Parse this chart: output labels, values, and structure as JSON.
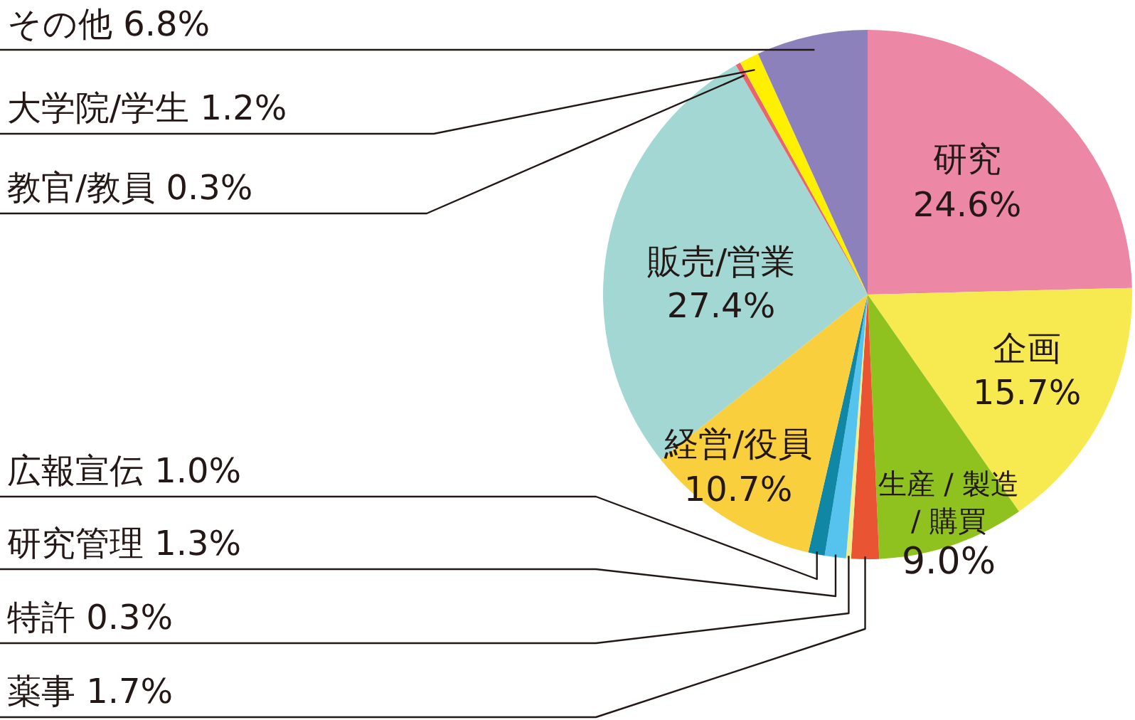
{
  "chart_data": {
    "type": "pie",
    "categories": [
      "研究",
      "企画",
      "生産 / 製造 / 購買",
      "薬事",
      "特許",
      "研究管理",
      "広報宣伝",
      "経営/役員",
      "販売/営業",
      "教官/教員",
      "大学院/学生",
      "その他"
    ],
    "values": [
      24.6,
      15.7,
      9.0,
      1.7,
      0.3,
      1.3,
      1.0,
      10.7,
      27.4,
      0.3,
      1.2,
      6.8
    ],
    "colors": [
      "#ed87a6",
      "#f7ea51",
      "#8fc21f",
      "#e95532",
      "#f3ee8c",
      "#56c3ef",
      "#0f87a5",
      "#f9cf3e",
      "#a2d7d4",
      "#e8656e",
      "#fff000",
      "#8c81bb"
    ],
    "value_labels": [
      "24.6%",
      "15.7%",
      "9.0%",
      "1.7%",
      "0.3%",
      "1.3%",
      "1.0%",
      "10.7%",
      "27.4%",
      "0.3%",
      "1.2%",
      "6.8%"
    ]
  }
}
